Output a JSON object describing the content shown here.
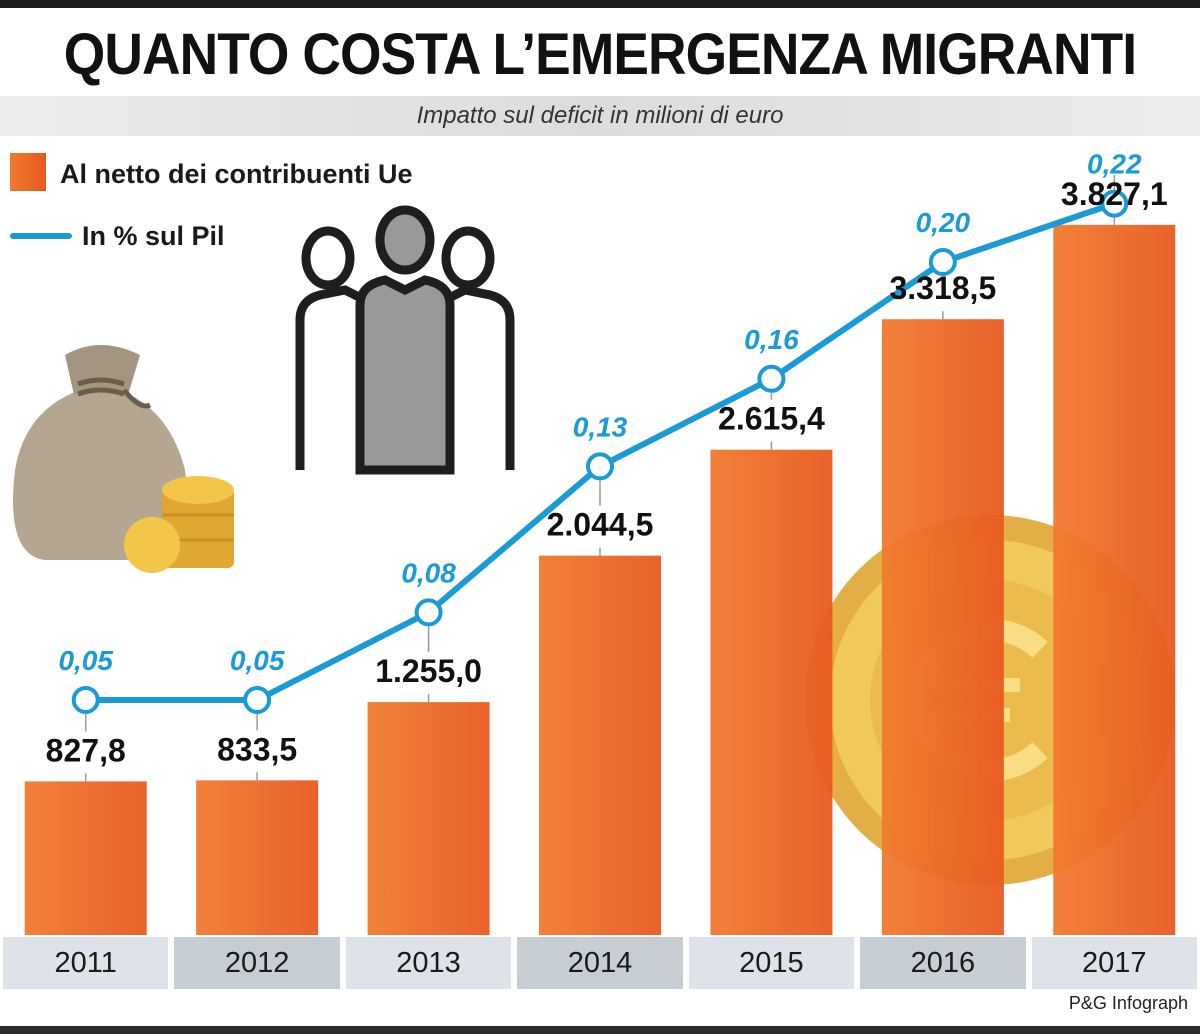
{
  "title": "QUANTO COSTA L’EMERGENZA MIGRANTI",
  "subtitle": "Impatto sul deficit in milioni di euro",
  "legend": {
    "bar_label": "Al netto dei contribuenti Ue",
    "line_label": "In % sul Pil"
  },
  "credit": "P&G Infograph",
  "colors": {
    "bar": "#ee6d28",
    "line": "#1a9ad6",
    "year_band_a": "#dde3e8",
    "year_band_b": "#c6ced4"
  },
  "icons": [
    "money-bag-icon",
    "coins-icon",
    "people-group-icon",
    "euro-coin-icon"
  ],
  "chart_data": {
    "type": "bar",
    "categories": [
      "2011",
      "2012",
      "2013",
      "2014",
      "2015",
      "2016",
      "2017"
    ],
    "series": [
      {
        "name": "Al netto dei contribuenti Ue",
        "type": "bar",
        "values": [
          827.8,
          833.5,
          1255.0,
          2044.5,
          2615.4,
          3318.5,
          3827.1
        ],
        "labels": [
          "827,8",
          "833,5",
          "1.255,0",
          "2.044,5",
          "2.615,4",
          "3.318,5",
          "3.827,1"
        ]
      },
      {
        "name": "In % sul Pil",
        "type": "line",
        "values": [
          0.05,
          0.05,
          0.08,
          0.13,
          0.16,
          0.2,
          0.22
        ],
        "labels": [
          "0,05",
          "0,05",
          "0,08",
          "0,13",
          "0,16",
          "0,20",
          "0,22"
        ]
      }
    ],
    "ylim": [
      0,
      4500
    ],
    "y2lim": [
      0,
      0.25
    ],
    "grid": false,
    "legend_position": "top-left"
  }
}
